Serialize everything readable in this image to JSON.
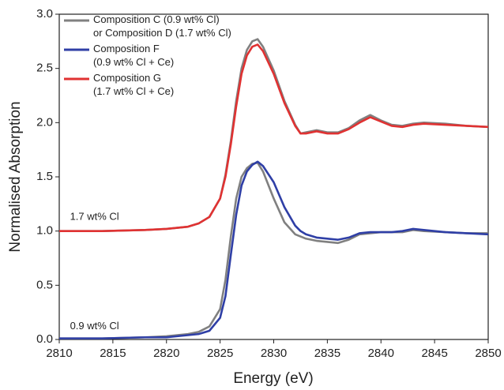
{
  "chart_data": {
    "type": "line",
    "x_label": "Energy (eV)",
    "y_label": "Normalised Absorption",
    "x": [
      2810,
      2814,
      2818,
      2820,
      2822,
      2823,
      2824,
      2825,
      2825.5,
      2826,
      2826.5,
      2827,
      2827.5,
      2828,
      2828.5,
      2829,
      2830,
      2831,
      2832,
      2832.5,
      2833,
      2834,
      2835,
      2836,
      2837,
      2838,
      2839,
      2840,
      2841,
      2842,
      2843,
      2844,
      2846,
      2848,
      2850
    ],
    "series": [
      {
        "color": "#808080",
        "values": [
          0.01,
          0.01,
          0.02,
          0.03,
          0.05,
          0.07,
          0.12,
          0.28,
          0.55,
          0.95,
          1.3,
          1.5,
          1.58,
          1.62,
          1.63,
          1.55,
          1.3,
          1.08,
          0.97,
          0.95,
          0.93,
          0.91,
          0.9,
          0.89,
          0.92,
          0.97,
          0.98,
          0.99,
          0.99,
          0.99,
          1.01,
          1.0,
          0.99,
          0.98,
          0.98
        ]
      },
      {
        "name": "Composition C (0.9 wt% Cl)\nor Composition D (1.7 wt% Cl)",
        "color": "#808080",
        "values": [
          1.0,
          1.0,
          1.01,
          1.02,
          1.04,
          1.07,
          1.13,
          1.3,
          1.52,
          1.83,
          2.2,
          2.5,
          2.67,
          2.75,
          2.77,
          2.7,
          2.48,
          2.2,
          1.98,
          1.9,
          1.91,
          1.93,
          1.91,
          1.91,
          1.95,
          2.02,
          2.07,
          2.02,
          1.98,
          1.97,
          1.99,
          2.0,
          1.99,
          1.97,
          1.96
        ]
      },
      {
        "name": "Composition F\n(0.9 wt% Cl + Ce)",
        "color": "#2f3fa6",
        "values": [
          0.01,
          0.01,
          0.02,
          0.02,
          0.04,
          0.05,
          0.08,
          0.2,
          0.4,
          0.78,
          1.15,
          1.42,
          1.55,
          1.61,
          1.64,
          1.6,
          1.45,
          1.22,
          1.05,
          1.0,
          0.97,
          0.94,
          0.93,
          0.92,
          0.94,
          0.98,
          0.99,
          0.99,
          0.99,
          1.0,
          1.02,
          1.01,
          0.99,
          0.98,
          0.97
        ]
      },
      {
        "name": "Composition G\n(1.7 wt% Cl + Ce)",
        "color": "#e03232",
        "values": [
          1.0,
          1.0,
          1.01,
          1.02,
          1.04,
          1.07,
          1.13,
          1.3,
          1.5,
          1.8,
          2.15,
          2.45,
          2.62,
          2.7,
          2.72,
          2.66,
          2.45,
          2.18,
          1.97,
          1.9,
          1.9,
          1.92,
          1.9,
          1.9,
          1.94,
          2.0,
          2.05,
          2.01,
          1.97,
          1.96,
          1.98,
          1.99,
          1.98,
          1.97,
          1.96
        ]
      }
    ],
    "annotations": [
      {
        "text": "1.7 wt% Cl",
        "x": 2811,
        "y": 1.13
      },
      {
        "text": "0.9 wt% Cl",
        "x": 2811,
        "y": 0.12
      }
    ],
    "xlim": [
      2810,
      2850
    ],
    "xticks": [
      2810,
      2815,
      2820,
      2825,
      2830,
      2835,
      2840,
      2845,
      2850
    ],
    "ylim": [
      0,
      3.0
    ],
    "yticks": [
      {
        "value": 0,
        "label": "0.0"
      },
      0.5,
      {
        "value": 1,
        "label": "1.0"
      },
      1.5,
      {
        "value": 2,
        "label": "2.0"
      },
      2.5,
      {
        "value": 3,
        "label": "3.0"
      }
    ],
    "legend": "upper left"
  }
}
